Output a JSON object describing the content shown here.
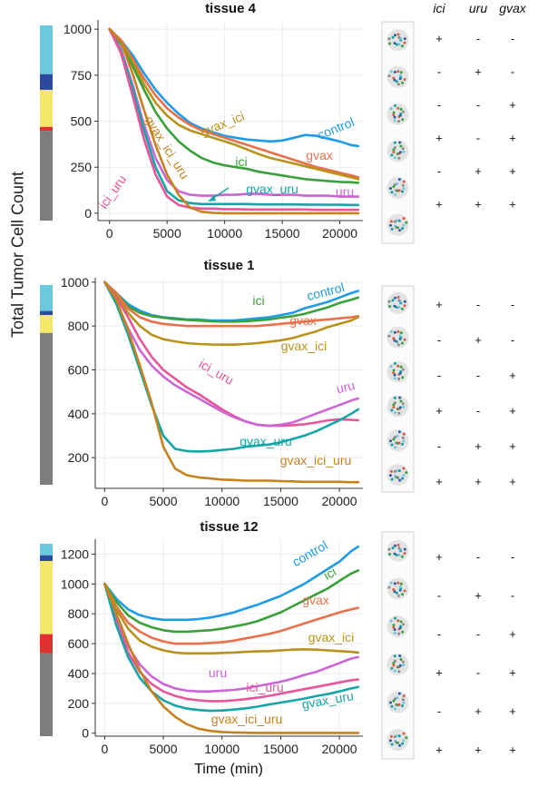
{
  "figure": {
    "ylabel": "Total Tumor Cell Count",
    "xlabel": "Time (min)",
    "treatment_headers": [
      "ici",
      "uru",
      "gvax"
    ],
    "colors": {
      "control": "#1f9be8",
      "ici": "#3aa03a",
      "gvax": "#e8704a",
      "gvax_ici": "#b8921a",
      "uru": "#cc66d6",
      "ici_uru": "#e8559a",
      "gvax_uru": "#14a6a6",
      "gvax_ici_uru": "#c7821e"
    }
  },
  "chart_data": [
    {
      "type": "line",
      "title": "tissue 4",
      "xlim": [
        -1000,
        22000
      ],
      "ylim": [
        -40,
        1050
      ],
      "x_ticks": [
        0,
        5000,
        10000,
        15000,
        20000
      ],
      "x_ticklabels": [
        "0",
        "5000",
        "10000",
        "15000",
        "20000"
      ],
      "y_ticks": [
        0,
        250,
        500,
        750,
        1000
      ],
      "y_ticklabels": [
        "0",
        "250",
        "500",
        "750",
        "1000"
      ],
      "x": [
        0,
        1000,
        2000,
        3000,
        4000,
        5000,
        6000,
        7000,
        8000,
        9000,
        10000,
        11000,
        12000,
        13000,
        14000,
        15000,
        16000,
        17000,
        18000,
        19000,
        20000,
        21000,
        21600
      ],
      "series": [
        {
          "name": "control",
          "values": [
            1000,
            940,
            860,
            760,
            670,
            600,
            540,
            490,
            460,
            440,
            420,
            410,
            400,
            395,
            390,
            395,
            410,
            425,
            420,
            405,
            390,
            370,
            365
          ]
        },
        {
          "name": "gvax",
          "values": [
            1000,
            940,
            840,
            730,
            640,
            570,
            520,
            480,
            450,
            430,
            410,
            390,
            370,
            350,
            330,
            310,
            290,
            270,
            250,
            235,
            220,
            205,
            195
          ]
        },
        {
          "name": "gvax_ici",
          "values": [
            1000,
            930,
            820,
            700,
            600,
            530,
            480,
            450,
            430,
            410,
            390,
            370,
            345,
            320,
            300,
            285,
            270,
            255,
            240,
            225,
            210,
            195,
            185
          ]
        },
        {
          "name": "ici",
          "values": [
            1000,
            920,
            800,
            670,
            550,
            460,
            390,
            340,
            300,
            275,
            260,
            250,
            240,
            225,
            215,
            205,
            195,
            185,
            180,
            175,
            170,
            168,
            165
          ]
        },
        {
          "name": "uru",
          "values": [
            1000,
            890,
            700,
            480,
            300,
            180,
            120,
            100,
            95,
            95,
            100,
            100,
            105,
            105,
            100,
            100,
            100,
            95,
            95,
            95,
            90,
            90,
            90
          ]
        },
        {
          "name": "gvax_uru",
          "values": [
            1000,
            880,
            680,
            450,
            250,
            120,
            70,
            55,
            50,
            50,
            50,
            50,
            50,
            48,
            48,
            48,
            48,
            47,
            47,
            46,
            46,
            45,
            45
          ]
        },
        {
          "name": "ici_uru",
          "values": [
            1000,
            870,
            640,
            400,
            210,
            90,
            45,
            30,
            25,
            25,
            22,
            22,
            20,
            20,
            20,
            20,
            20,
            20,
            18,
            18,
            18,
            18,
            18
          ]
        },
        {
          "name": "gvax_ici_uru",
          "values": [
            1000,
            930,
            760,
            560,
            370,
            210,
            100,
            30,
            8,
            2,
            0,
            0,
            0,
            0,
            0,
            0,
            0,
            0,
            0,
            0,
            0,
            0,
            0
          ]
        }
      ],
      "annotations": [
        "control",
        "gvax",
        "gvax_ici",
        "ici",
        "uru",
        "gvax_uru",
        "ici_uru",
        "gvax_ici_uru"
      ],
      "composition": [
        {
          "color": "#6cc9dc",
          "fraction": 0.25
        },
        {
          "color": "#2c4a9c",
          "fraction": 0.08
        },
        {
          "color": "#f5e76a",
          "fraction": 0.19
        },
        {
          "color": "#e03030",
          "fraction": 0.02
        },
        {
          "color": "#7d7d7d",
          "fraction": 0.46
        }
      ],
      "signs": [
        [
          "+",
          "-",
          "-"
        ],
        [
          "-",
          "+",
          "-"
        ],
        [
          "-",
          "-",
          "+"
        ],
        [
          "+",
          "-",
          "+"
        ],
        [
          "-",
          "+",
          "+"
        ],
        [
          "+",
          "+",
          "+"
        ]
      ]
    },
    {
      "type": "line",
      "title": "tissue 1",
      "xlim": [
        -800,
        22000
      ],
      "ylim": [
        60,
        1020
      ],
      "x_ticks": [
        0,
        5000,
        10000,
        15000,
        20000
      ],
      "x_ticklabels": [
        "0",
        "5000",
        "10000",
        "15000",
        "20000"
      ],
      "y_ticks": [
        200,
        400,
        600,
        800,
        1000
      ],
      "y_ticklabels": [
        "200",
        "400",
        "600",
        "800",
        "1000"
      ],
      "x": [
        0,
        1000,
        2000,
        3000,
        4000,
        5000,
        6000,
        7000,
        8000,
        9000,
        10000,
        11000,
        12000,
        13000,
        14000,
        15000,
        16000,
        17000,
        18000,
        19000,
        20000,
        21000,
        21600
      ],
      "series": [
        {
          "name": "control",
          "values": [
            1000,
            950,
            900,
            870,
            850,
            840,
            835,
            830,
            830,
            825,
            825,
            825,
            830,
            835,
            840,
            850,
            860,
            880,
            895,
            910,
            930,
            950,
            960
          ]
        },
        {
          "name": "ici",
          "values": [
            1000,
            950,
            890,
            860,
            845,
            838,
            832,
            828,
            825,
            822,
            820,
            820,
            822,
            826,
            830,
            838,
            845,
            855,
            870,
            885,
            905,
            920,
            930
          ]
        },
        {
          "name": "gvax",
          "values": [
            1000,
            950,
            880,
            840,
            820,
            810,
            805,
            800,
            800,
            800,
            800,
            800,
            800,
            800,
            805,
            810,
            815,
            820,
            825,
            830,
            835,
            840,
            845
          ]
        },
        {
          "name": "gvax_ici",
          "values": [
            1000,
            940,
            860,
            800,
            760,
            740,
            730,
            722,
            718,
            716,
            715,
            715,
            718,
            722,
            728,
            735,
            745,
            760,
            775,
            795,
            810,
            825,
            840
          ]
        },
        {
          "name": "ici_uru",
          "values": [
            1000,
            930,
            840,
            740,
            660,
            600,
            560,
            520,
            490,
            455,
            420,
            390,
            365,
            350,
            345,
            345,
            348,
            352,
            360,
            370,
            375,
            372,
            370
          ]
        },
        {
          "name": "uru",
          "values": [
            1000,
            910,
            790,
            690,
            620,
            570,
            530,
            500,
            470,
            440,
            410,
            385,
            365,
            350,
            345,
            350,
            360,
            380,
            400,
            420,
            440,
            460,
            470
          ]
        },
        {
          "name": "gvax_uru",
          "values": [
            1000,
            900,
            760,
            600,
            440,
            300,
            240,
            230,
            228,
            230,
            235,
            240,
            250,
            255,
            260,
            270,
            285,
            300,
            320,
            345,
            370,
            400,
            420
          ]
        },
        {
          "name": "gvax_ici_uru",
          "values": [
            1000,
            920,
            780,
            620,
            450,
            250,
            150,
            120,
            110,
            105,
            100,
            98,
            95,
            95,
            95,
            93,
            92,
            90,
            90,
            90,
            90,
            88,
            88
          ]
        }
      ],
      "annotations": [
        "control",
        "ici",
        "gvax",
        "gvax_ici",
        "ici_uru",
        "uru",
        "gvax_uru",
        "gvax_ici_uru"
      ],
      "composition": [
        {
          "color": "#6cc9dc",
          "fraction": 0.13
        },
        {
          "color": "#2c4a9c",
          "fraction": 0.02
        },
        {
          "color": "#f5e76a",
          "fraction": 0.09
        },
        {
          "color": "#7d7d7d",
          "fraction": 0.76
        }
      ],
      "signs": [
        [
          "+",
          "-",
          "-"
        ],
        [
          "-",
          "+",
          "-"
        ],
        [
          "-",
          "-",
          "+"
        ],
        [
          "+",
          "-",
          "+"
        ],
        [
          "-",
          "+",
          "+"
        ],
        [
          "+",
          "+",
          "+"
        ]
      ]
    },
    {
      "type": "line",
      "title": "tissue 12",
      "xlim": [
        -800,
        22000
      ],
      "ylim": [
        -20,
        1300
      ],
      "x_ticks": [
        0,
        5000,
        10000,
        15000,
        20000
      ],
      "x_ticklabels": [
        "0",
        "5000",
        "10000",
        "15000",
        "20000"
      ],
      "y_ticks": [
        0,
        200,
        400,
        600,
        800,
        1000,
        1200
      ],
      "y_ticklabels": [
        "0",
        "200",
        "400",
        "600",
        "800",
        "1000",
        "1200"
      ],
      "x": [
        0,
        1000,
        2000,
        3000,
        4000,
        5000,
        6000,
        7000,
        8000,
        9000,
        10000,
        11000,
        12000,
        13000,
        14000,
        15000,
        16000,
        17000,
        18000,
        19000,
        20000,
        21000,
        21600
      ],
      "series": [
        {
          "name": "control",
          "values": [
            1000,
            900,
            830,
            790,
            770,
            760,
            760,
            760,
            765,
            775,
            790,
            810,
            835,
            860,
            890,
            920,
            960,
            1000,
            1050,
            1100,
            1150,
            1220,
            1250
          ]
        },
        {
          "name": "ici",
          "values": [
            1000,
            880,
            790,
            740,
            710,
            690,
            680,
            680,
            685,
            690,
            700,
            715,
            730,
            750,
            780,
            810,
            850,
            890,
            930,
            970,
            1020,
            1070,
            1090
          ]
        },
        {
          "name": "gvax",
          "values": [
            1000,
            850,
            740,
            680,
            640,
            615,
            600,
            600,
            600,
            605,
            610,
            620,
            635,
            650,
            665,
            685,
            710,
            735,
            760,
            785,
            810,
            830,
            840
          ]
        },
        {
          "name": "gvax_ici",
          "values": [
            1000,
            830,
            700,
            620,
            580,
            555,
            540,
            535,
            535,
            535,
            538,
            540,
            545,
            548,
            550,
            555,
            560,
            562,
            560,
            555,
            550,
            545,
            540
          ]
        },
        {
          "name": "uru",
          "values": [
            1000,
            760,
            580,
            460,
            380,
            330,
            300,
            285,
            280,
            280,
            285,
            290,
            300,
            315,
            330,
            345,
            365,
            390,
            410,
            440,
            470,
            500,
            510
          ]
        },
        {
          "name": "ici_uru",
          "values": [
            1000,
            740,
            540,
            410,
            330,
            280,
            250,
            230,
            220,
            215,
            215,
            220,
            228,
            238,
            250,
            265,
            280,
            295,
            310,
            325,
            340,
            355,
            360
          ]
        },
        {
          "name": "gvax_uru",
          "values": [
            1000,
            720,
            510,
            370,
            280,
            220,
            185,
            165,
            155,
            150,
            152,
            158,
            166,
            178,
            192,
            205,
            218,
            232,
            248,
            262,
            280,
            300,
            310
          ]
        },
        {
          "name": "gvax_ici_uru",
          "values": [
            1000,
            800,
            600,
            420,
            280,
            180,
            110,
            60,
            30,
            15,
            8,
            5,
            3,
            2,
            2,
            2,
            2,
            2,
            2,
            2,
            2,
            2,
            2
          ]
        }
      ],
      "annotations": [
        "control",
        "ici",
        "gvax",
        "gvax_ici",
        "uru",
        "ici_uru",
        "gvax_uru",
        "gvax_ici_uru"
      ],
      "composition": [
        {
          "color": "#6cc9dc",
          "fraction": 0.06
        },
        {
          "color": "#2c4a9c",
          "fraction": 0.03
        },
        {
          "color": "#f5e76a",
          "fraction": 0.38
        },
        {
          "color": "#e03030",
          "fraction": 0.1
        },
        {
          "color": "#7d7d7d",
          "fraction": 0.43
        }
      ],
      "signs": [
        [
          "+",
          "-",
          "-"
        ],
        [
          "-",
          "+",
          "-"
        ],
        [
          "-",
          "-",
          "+"
        ],
        [
          "+",
          "-",
          "+"
        ],
        [
          "-",
          "+",
          "+"
        ],
        [
          "+",
          "+",
          "+"
        ]
      ]
    }
  ]
}
